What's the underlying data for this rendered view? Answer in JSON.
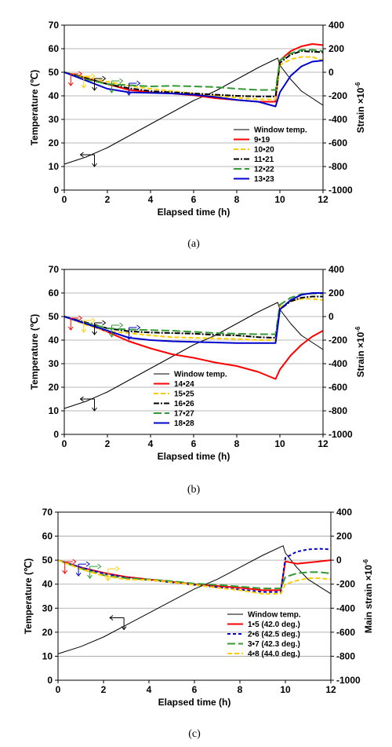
{
  "chart_data": [
    {
      "type": "line",
      "caption": "(a)",
      "xlabel": "Elapsed time (h)",
      "ylabel": "Temperature (℃)",
      "y2label": "Strain ×10",
      "y2label_sup": "-6",
      "xlim": [
        0,
        12
      ],
      "ylim": [
        0,
        70
      ],
      "y2lim": [
        -1000,
        400
      ],
      "xticks": [
        "0",
        "2",
        "4",
        "6",
        "8",
        "10",
        "12"
      ],
      "yticks": [
        "0",
        "10",
        "20",
        "30",
        "40",
        "50",
        "60",
        "70"
      ],
      "y2ticks": [
        "-1000",
        "-800",
        "-600",
        "-400",
        "-200",
        "0",
        "200",
        "400"
      ],
      "grid": "horizontal",
      "legend": "bottom-right",
      "series": [
        {
          "name": "Window temp.",
          "axis": "left",
          "color": "#000000",
          "dash": "",
          "x": [
            0,
            1,
            2,
            3,
            4,
            5,
            6,
            7,
            8,
            9,
            9.9,
            10,
            10.5,
            11,
            11.5,
            12
          ],
          "y": [
            11,
            14,
            18,
            23,
            28,
            33,
            38,
            42,
            47,
            52,
            56,
            53,
            47,
            42,
            39,
            36
          ]
        },
        {
          "name": "9•19",
          "axis": "right",
          "color": "#ff0000",
          "dash": "",
          "x": [
            0,
            1,
            2,
            3,
            4,
            5,
            6,
            7,
            8,
            9,
            9.8,
            10,
            10.5,
            11,
            11.5,
            12
          ],
          "y": [
            0,
            -50,
            -100,
            -150,
            -170,
            -180,
            -195,
            -220,
            -235,
            -250,
            -250,
            100,
            180,
            220,
            240,
            230
          ]
        },
        {
          "name": "10•20",
          "axis": "right",
          "color": "#ffcc00",
          "dash": "6,3",
          "x": [
            0,
            1,
            2,
            3,
            4,
            5,
            6,
            7,
            8,
            9,
            9.8,
            10,
            10.5,
            11,
            11.5,
            12
          ],
          "y": [
            0,
            -40,
            -80,
            -115,
            -140,
            -160,
            -180,
            -200,
            -215,
            -230,
            -230,
            60,
            110,
            130,
            130,
            100
          ]
        },
        {
          "name": "11•21",
          "axis": "right",
          "color": "#000000",
          "dash": "7,2,2,2",
          "x": [
            0,
            1,
            2,
            3,
            4,
            5,
            6,
            7,
            8,
            9,
            9.8,
            10,
            10.5,
            11,
            11.5,
            12
          ],
          "y": [
            0,
            -50,
            -100,
            -135,
            -160,
            -170,
            -180,
            -190,
            -200,
            -205,
            -205,
            80,
            150,
            180,
            175,
            170
          ]
        },
        {
          "name": "12•22",
          "axis": "right",
          "color": "#339933",
          "dash": "10,4",
          "x": [
            0,
            1,
            2,
            3,
            4,
            5,
            6,
            7,
            8,
            9,
            9.8,
            10,
            10.5,
            11,
            11.5,
            12
          ],
          "y": [
            0,
            -60,
            -100,
            -110,
            -120,
            -115,
            -120,
            -125,
            -140,
            -150,
            -150,
            100,
            160,
            190,
            190,
            180
          ]
        },
        {
          "name": "13•23",
          "axis": "right",
          "color": "#0000cc",
          "dash": "",
          "x": [
            0,
            1,
            2,
            3,
            4,
            5,
            6,
            7,
            8,
            9,
            9.8,
            10,
            10.5,
            11,
            11.5,
            12
          ],
          "y": [
            0,
            -70,
            -140,
            -170,
            -175,
            -180,
            -190,
            -210,
            -235,
            -250,
            -290,
            -170,
            -30,
            50,
            90,
            100
          ]
        }
      ]
    },
    {
      "type": "line",
      "caption": "(b)",
      "xlabel": "Elapsed time (h)",
      "ylabel": "Temperature (℃)",
      "y2label": "Strain ×10",
      "y2label_sup": "-6",
      "xlim": [
        0,
        12
      ],
      "ylim": [
        0,
        70
      ],
      "y2lim": [
        -1000,
        400
      ],
      "xticks": [
        "0",
        "2",
        "4",
        "6",
        "8",
        "10",
        "12"
      ],
      "yticks": [
        "0",
        "10",
        "20",
        "30",
        "40",
        "50",
        "60",
        "70"
      ],
      "y2ticks": [
        "-1000",
        "-800",
        "-600",
        "-400",
        "-200",
        "0",
        "200",
        "400"
      ],
      "grid": "horizontal",
      "legend": "bottom-left",
      "series": [
        {
          "name": "Window temp.",
          "axis": "left",
          "color": "#000000",
          "dash": "",
          "x": [
            0,
            1,
            2,
            3,
            4,
            5,
            6,
            7,
            8,
            9,
            9.9,
            10,
            10.5,
            11,
            11.5,
            12
          ],
          "y": [
            11,
            14,
            18,
            23,
            28,
            33,
            38,
            42,
            47,
            52,
            56,
            53,
            47,
            42,
            39,
            36
          ]
        },
        {
          "name": "14•24",
          "axis": "right",
          "color": "#ff0000",
          "dash": "",
          "x": [
            0,
            1,
            2,
            3,
            4,
            5,
            6,
            7,
            8,
            9,
            9.8,
            10,
            10.5,
            11,
            11.5,
            12
          ],
          "y": [
            0,
            -60,
            -130,
            -210,
            -270,
            -320,
            -350,
            -390,
            -420,
            -470,
            -530,
            -450,
            -330,
            -240,
            -170,
            -120
          ]
        },
        {
          "name": "15•25",
          "axis": "right",
          "color": "#ffcc00",
          "dash": "6,3",
          "x": [
            0,
            1,
            2,
            3,
            4,
            5,
            6,
            7,
            8,
            9,
            9.8,
            10,
            10.5,
            11,
            11.5,
            12
          ],
          "y": [
            0,
            -70,
            -125,
            -140,
            -160,
            -175,
            -180,
            -185,
            -190,
            -200,
            -200,
            80,
            130,
            150,
            150,
            140
          ]
        },
        {
          "name": "16•26",
          "axis": "right",
          "color": "#000000",
          "dash": "7,2,2,2",
          "x": [
            0,
            1,
            2,
            3,
            4,
            5,
            6,
            7,
            8,
            9,
            9.8,
            10,
            10.5,
            11,
            11.5,
            12
          ],
          "y": [
            0,
            -50,
            -100,
            -125,
            -135,
            -140,
            -145,
            -155,
            -160,
            -175,
            -180,
            60,
            130,
            160,
            170,
            170
          ]
        },
        {
          "name": "17•27",
          "axis": "right",
          "color": "#339933",
          "dash": "10,4",
          "x": [
            0,
            1,
            2,
            3,
            4,
            5,
            6,
            7,
            8,
            9,
            9.8,
            10,
            10.5,
            11,
            11.5,
            12
          ],
          "y": [
            0,
            -55,
            -100,
            -110,
            -115,
            -120,
            -130,
            -140,
            -145,
            -150,
            -150,
            100,
            160,
            190,
            195,
            195
          ]
        },
        {
          "name": "18•28",
          "axis": "right",
          "color": "#0000cc",
          "dash": "",
          "x": [
            0,
            1,
            2,
            3,
            4,
            5,
            6,
            7,
            8,
            9,
            9.8,
            10,
            10.5,
            11,
            11.5,
            12
          ],
          "y": [
            0,
            -60,
            -120,
            -180,
            -200,
            -210,
            -215,
            -220,
            -225,
            -225,
            -225,
            60,
            140,
            185,
            200,
            200
          ]
        }
      ]
    },
    {
      "type": "line",
      "caption": "(c)",
      "xlabel": "Elapsed time (h)",
      "ylabel": "Temperature (℃)",
      "y2label": "Main strain ×10",
      "y2label_sup": "-6",
      "xlim": [
        0,
        12
      ],
      "ylim": [
        0,
        70
      ],
      "y2lim": [
        -1000,
        400
      ],
      "xticks": [
        "0",
        "2",
        "4",
        "6",
        "8",
        "10",
        "12"
      ],
      "yticks": [
        "0",
        "10",
        "20",
        "30",
        "40",
        "50",
        "60",
        "70"
      ],
      "y2ticks": [
        "-1000",
        "-800",
        "-600",
        "-400",
        "-200",
        "0",
        "200",
        "400"
      ],
      "grid": "horizontal",
      "legend": "bottom-right",
      "series": [
        {
          "name": "Window temp.",
          "axis": "left",
          "color": "#000000",
          "dash": "",
          "x": [
            0,
            1,
            2,
            3,
            4,
            5,
            6,
            7,
            8,
            9,
            9.9,
            10,
            10.5,
            11,
            11.5,
            12
          ],
          "y": [
            11,
            14,
            18,
            23,
            28,
            33,
            38,
            42,
            47,
            52,
            56,
            53,
            47,
            42,
            39,
            36
          ]
        },
        {
          "name": "1•5 (42.0 deg.)",
          "axis": "right",
          "color": "#ff0000",
          "dash": "",
          "x": [
            0,
            1,
            2,
            3,
            4,
            5,
            6,
            7,
            8,
            9,
            9.8,
            10,
            10.5,
            11,
            11.5,
            12
          ],
          "y": [
            0,
            -60,
            -105,
            -140,
            -160,
            -180,
            -200,
            -215,
            -230,
            -250,
            -250,
            -10,
            -30,
            -20,
            -10,
            0
          ]
        },
        {
          "name": "2•6 (42.5 deg.)",
          "axis": "right",
          "color": "#0000cc",
          "dash": "4,3",
          "x": [
            0,
            1,
            2,
            3,
            4,
            5,
            6,
            7,
            8,
            9,
            9.8,
            10,
            10.5,
            11,
            11.5,
            12
          ],
          "y": [
            0,
            -60,
            -110,
            -145,
            -165,
            -185,
            -205,
            -225,
            -245,
            -265,
            -265,
            20,
            70,
            90,
            95,
            90
          ]
        },
        {
          "name": "3•7 (42.3 deg.)",
          "axis": "right",
          "color": "#339933",
          "dash": "10,4",
          "x": [
            0,
            1,
            2,
            3,
            4,
            5,
            6,
            7,
            8,
            9,
            9.8,
            10,
            10.5,
            11,
            11.5,
            12
          ],
          "y": [
            0,
            -70,
            -125,
            -150,
            -160,
            -175,
            -195,
            -205,
            -220,
            -235,
            -235,
            -140,
            -110,
            -100,
            -100,
            -110
          ]
        },
        {
          "name": "4•8 (44.0 deg.)",
          "axis": "right",
          "color": "#ffcc00",
          "dash": "6,3",
          "x": [
            0,
            1,
            2,
            3,
            4,
            5,
            6,
            7,
            8,
            9,
            9.8,
            10,
            10.5,
            11,
            11.5,
            12
          ],
          "y": [
            0,
            -75,
            -130,
            -160,
            -165,
            -185,
            -205,
            -230,
            -250,
            -280,
            -280,
            -200,
            -170,
            -150,
            -150,
            -160
          ]
        }
      ]
    }
  ]
}
